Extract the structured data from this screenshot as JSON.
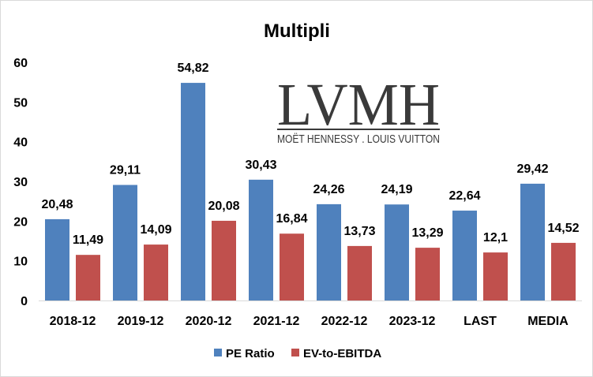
{
  "chart_data": {
    "type": "bar",
    "title": "Multipli",
    "categories": [
      "2018-12",
      "2019-12",
      "2020-12",
      "2021-12",
      "2022-12",
      "2023-12",
      "LAST",
      "MEDIA"
    ],
    "series": [
      {
        "name": "PE Ratio",
        "color": "#4f81bd",
        "values": [
          20.48,
          29.11,
          54.82,
          30.43,
          24.26,
          24.19,
          22.64,
          29.42
        ],
        "labels": [
          "20,48",
          "29,11",
          "54,82",
          "30,43",
          "24,26",
          "24,19",
          "22,64",
          "29,42"
        ]
      },
      {
        "name": "EV-to-EBITDA",
        "color": "#c0504d",
        "values": [
          11.49,
          14.09,
          20.08,
          16.84,
          13.73,
          13.29,
          12.1,
          14.52
        ],
        "labels": [
          "11,49",
          "14,09",
          "20,08",
          "16,84",
          "13,73",
          "13,29",
          "12,1",
          "14,52"
        ]
      }
    ],
    "ylim": [
      0,
      60
    ],
    "yticks": [
      0,
      10,
      20,
      30,
      40,
      50,
      60
    ],
    "grid": false,
    "legend_position": "bottom"
  },
  "logo": {
    "name": "LVMH",
    "tagline": "MOËT HENNESSY . LOUIS VUITTON"
  }
}
